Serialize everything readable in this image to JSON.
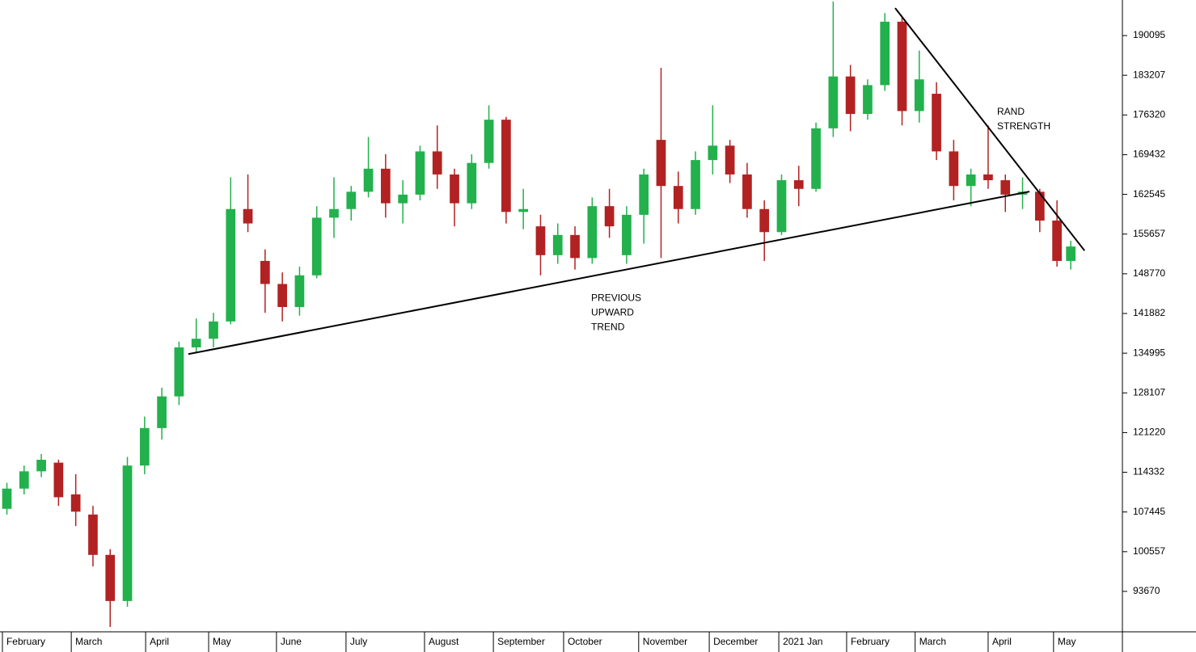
{
  "chart_data": {
    "type": "candlestick",
    "x": [
      2,
      7,
      12,
      17,
      22,
      27,
      32,
      37,
      42,
      47,
      52,
      57,
      62,
      67,
      72,
      77,
      82,
      87,
      92,
      97,
      102,
      107,
      112,
      117,
      122,
      127,
      132,
      137,
      142,
      147,
      152,
      157,
      162,
      167,
      172,
      177,
      182,
      187,
      192,
      197,
      202,
      207,
      212,
      217,
      222,
      227,
      232,
      237,
      242,
      247,
      252,
      257,
      262,
      267,
      272,
      277,
      282,
      287,
      292,
      297,
      302,
      307,
      311
    ],
    "open": [
      108000,
      111500,
      114500,
      116000,
      110500,
      107000,
      100000,
      92000,
      115500,
      122000,
      127500,
      136000,
      137500,
      140500,
      160000,
      151000,
      147000,
      143000,
      148500,
      158500,
      160000,
      163000,
      167000,
      161000,
      162500,
      170000,
      166000,
      161000,
      168000,
      175500,
      159500,
      157000,
      152000,
      155500,
      151500,
      160500,
      152000,
      159000,
      172000,
      164000,
      160000,
      168500,
      171000,
      166000,
      160000,
      156000,
      165000,
      163500,
      174000,
      183000,
      176500,
      181500,
      192500,
      177000,
      180000,
      170000,
      164000,
      166000,
      165000,
      162500,
      163000,
      158000,
      151000
    ],
    "high": [
      112500,
      115500,
      117500,
      116500,
      114000,
      108500,
      101000,
      117000,
      124000,
      129000,
      137000,
      141000,
      142000,
      165500,
      166000,
      153000,
      149000,
      150000,
      160500,
      165500,
      164000,
      172500,
      169500,
      165000,
      171000,
      174500,
      167000,
      169500,
      178000,
      176000,
      163500,
      159000,
      157500,
      157000,
      162000,
      163500,
      160500,
      167000,
      184500,
      166500,
      170000,
      178000,
      172000,
      168000,
      161500,
      166000,
      167500,
      175000,
      196000,
      185000,
      182500,
      194000,
      193500,
      187500,
      182000,
      172000,
      167000,
      174500,
      166000,
      165500,
      163500,
      161500,
      154500
    ],
    "low": [
      107000,
      110500,
      113500,
      108500,
      105000,
      98000,
      87500,
      91000,
      114000,
      120000,
      126000,
      135000,
      136000,
      140000,
      156000,
      142000,
      140500,
      141500,
      148000,
      155000,
      158000,
      162000,
      158500,
      157500,
      161500,
      163500,
      157000,
      160000,
      167000,
      157500,
      156500,
      148500,
      150500,
      149500,
      150500,
      155000,
      150500,
      154000,
      151500,
      157500,
      159000,
      166000,
      164500,
      158500,
      151000,
      155500,
      160500,
      163000,
      172500,
      173500,
      175500,
      180500,
      174500,
      175000,
      168500,
      161500,
      160500,
      163500,
      159500,
      160000,
      156000,
      150000,
      149500
    ],
    "close": [
      111500,
      114500,
      116500,
      110000,
      107500,
      100000,
      92000,
      115500,
      122000,
      127500,
      136000,
      137500,
      140500,
      160000,
      157500,
      147000,
      143000,
      148500,
      158500,
      160000,
      163000,
      167000,
      161000,
      162500,
      170000,
      166000,
      161000,
      168000,
      175500,
      159500,
      160000,
      152000,
      155500,
      151500,
      160500,
      157000,
      159000,
      166000,
      164000,
      160000,
      168500,
      171000,
      166000,
      160000,
      156000,
      165000,
      163500,
      174000,
      183000,
      176500,
      181500,
      192500,
      177000,
      182500,
      170000,
      164000,
      166000,
      165000,
      162500,
      163000,
      158000,
      151000,
      153500
    ],
    "up_color": "#22b14c",
    "down_color": "#b22222",
    "xlim": [
      0,
      326
    ],
    "xticks": [
      {
        "value": 0.7,
        "label": "February"
      },
      {
        "value": 20.7,
        "label": "March"
      },
      {
        "value": 42.3,
        "label": "April"
      },
      {
        "value": 60.6,
        "label": "May"
      },
      {
        "value": 80.3,
        "label": "June"
      },
      {
        "value": 100.5,
        "label": "July"
      },
      {
        "value": 123.3,
        "label": "August"
      },
      {
        "value": 143.3,
        "label": "September"
      },
      {
        "value": 163.7,
        "label": "October"
      },
      {
        "value": 185.5,
        "label": "November"
      },
      {
        "value": 206,
        "label": "December"
      },
      {
        "value": 226.2,
        "label": "2021 Jan"
      },
      {
        "value": 245.9,
        "label": "February"
      },
      {
        "value": 265.8,
        "label": "March"
      },
      {
        "value": 287,
        "label": "April"
      },
      {
        "value": 306,
        "label": "May"
      }
    ],
    "ylim": [
      86657,
      196266
    ],
    "yticks": [
      190095,
      183207,
      176320,
      169432,
      162545,
      155657,
      148770,
      141882,
      134995,
      128107,
      121220,
      114332,
      107445,
      100557,
      93670
    ],
    "trend_lines": [
      {
        "x": [
          54.7,
          299
        ],
        "y": [
          134836,
          163027
        ]
      },
      {
        "x": [
          260,
          315
        ],
        "y": [
          194864,
          152788
        ]
      }
    ],
    "annotations": [
      {
        "lines": [
          "PREVIOUS",
          "UPWARD",
          "TREND"
        ],
        "x": 171.7,
        "y": 144500
      },
      {
        "lines": [
          "RAND",
          "STRENGTH"
        ],
        "x": 289.6,
        "y": 176800
      }
    ],
    "annotation_color": "#0000ee"
  }
}
